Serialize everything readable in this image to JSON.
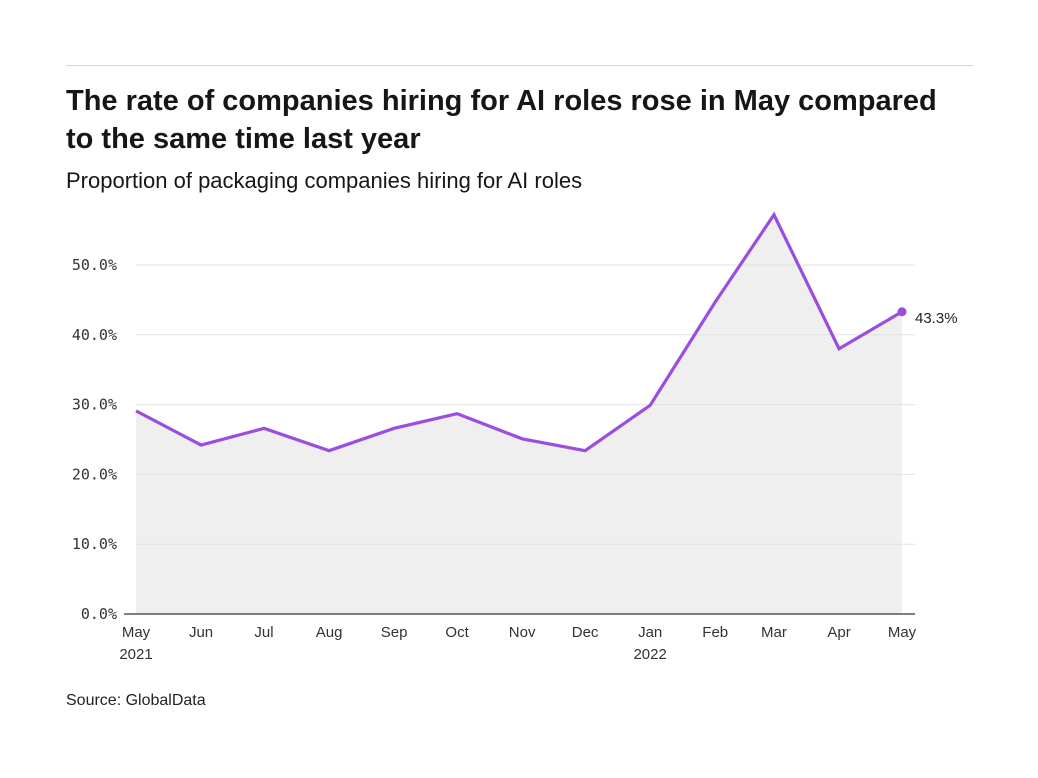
{
  "title": "The rate of companies hiring for AI roles rose in May compared to the same time last year",
  "subtitle": "Proportion of packaging companies hiring for AI roles",
  "source": "Source: GlobalData",
  "chart_data": {
    "type": "area",
    "title": "The rate of companies hiring for AI roles rose in May compared to the same time last year",
    "subtitle": "Proportion of packaging companies hiring for AI roles",
    "xlabel": "",
    "ylabel": "",
    "ylim": [
      0,
      0.6
    ],
    "yticks": [
      0,
      0.1,
      0.2,
      0.3,
      0.4,
      0.5
    ],
    "ytick_labels": [
      "0.0%",
      "10.0%",
      "20.0%",
      "30.0%",
      "40.0%",
      "50.0%"
    ],
    "grid": true,
    "line_color": "#9b4de0",
    "fill_color": "#efefef",
    "x": [
      "2021-05-01",
      "2021-06-01",
      "2021-07-01",
      "2021-08-01",
      "2021-09-01",
      "2021-10-01",
      "2021-11-01",
      "2021-12-01",
      "2022-01-01",
      "2022-02-01",
      "2022-03-01",
      "2022-04-01",
      "2022-05-01"
    ],
    "xtick_labels": [
      [
        "May",
        "2021"
      ],
      [
        "Jun",
        ""
      ],
      [
        "Jul",
        ""
      ],
      [
        "Aug",
        ""
      ],
      [
        "Sep",
        ""
      ],
      [
        "Oct",
        ""
      ],
      [
        "Nov",
        ""
      ],
      [
        "Dec",
        ""
      ],
      [
        "Jan",
        "2022"
      ],
      [
        "Feb",
        ""
      ],
      [
        "Mar",
        ""
      ],
      [
        "Apr",
        ""
      ],
      [
        "May",
        ""
      ]
    ],
    "values": [
      0.291,
      0.242,
      0.266,
      0.234,
      0.266,
      0.287,
      0.251,
      0.234,
      0.299,
      0.447,
      0.572,
      0.38,
      0.433
    ],
    "end_label": "43.3%"
  }
}
